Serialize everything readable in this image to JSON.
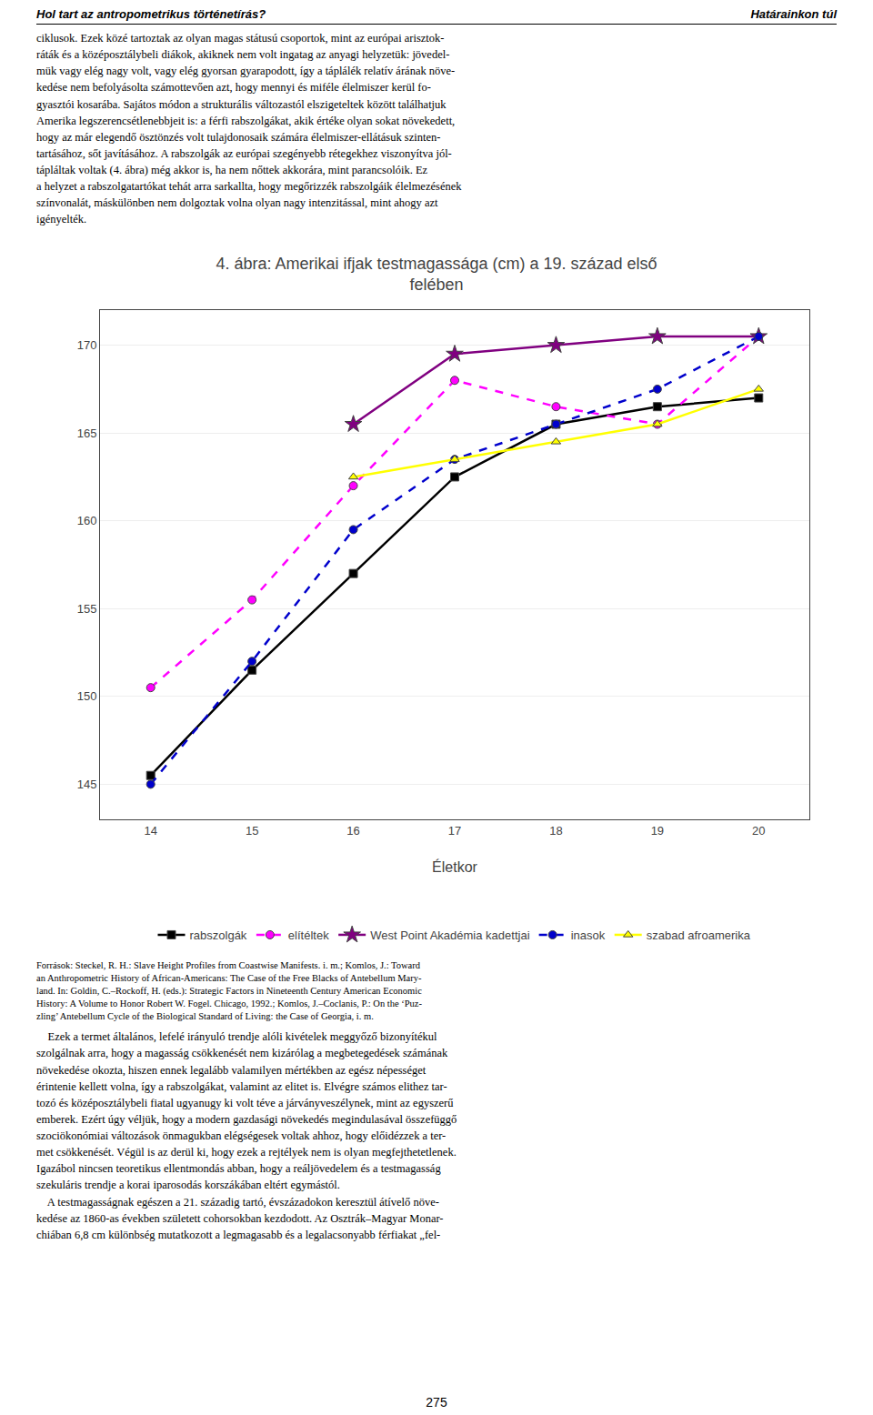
{
  "chart_data": {
    "type": "line",
    "title": "4. ábra: Amerikai ifjak testmagassága (cm) a 19. század első\nfelében",
    "xlabel": "Életkor",
    "x": [
      14,
      15,
      16,
      17,
      18,
      19,
      20
    ],
    "xlim": [
      13.5,
      20.5
    ],
    "xticks": [
      14,
      15,
      16,
      17,
      18,
      19,
      20
    ],
    "ylim": [
      143,
      172
    ],
    "yticks": [
      145,
      150,
      155,
      160,
      165,
      170
    ],
    "grid": "y",
    "legend": "bottom",
    "series": [
      {
        "name": "rabszolgák",
        "color": "#000000",
        "marker": "square",
        "line_style": "solid",
        "values": [
          145.5,
          151.5,
          157.0,
          162.5,
          165.5,
          166.5,
          167.0
        ]
      },
      {
        "name": "elítéltek",
        "color": "#FF00FF",
        "marker": "circle",
        "line_style": "dashed",
        "values": [
          150.5,
          155.5,
          162.0,
          168.0,
          166.5,
          165.5,
          170.5
        ]
      },
      {
        "name": "West Point Akadémia kadettjai",
        "color": "#800080",
        "marker": "star",
        "line_style": "solid",
        "values": [
          null,
          null,
          165.5,
          169.5,
          170.0,
          170.5,
          170.5
        ]
      },
      {
        "name": "inasok",
        "color": "#0000CC",
        "marker": "circle",
        "line_style": "dashed",
        "values": [
          145.0,
          152.0,
          159.5,
          163.5,
          165.5,
          167.5,
          170.5
        ]
      },
      {
        "name": "szabad afroamerika",
        "color": "#FFFF00",
        "marker": "triangle-up",
        "line_style": "solid",
        "values": [
          null,
          null,
          162.5,
          163.5,
          164.5,
          165.5,
          167.5
        ]
      }
    ],
    "annotations": [
      "Hol tart az antropometrikus történetírás?",
      "Határainkon túl",
      "ciklusok. Ezek közé tartoztak az olyan magas státusú csoportok, mint az európai arisztok-\nráták és a középosztálybeli diákok, akiknek nem volt ingatag az anyagi helyzetük: jövedel-\nmük vagy elég nagy volt, vagy elég gyorsan gyarapodott, így a táplálék relatív árának növe-\nkedése nem befolyásolta számottevően azt, hogy mennyi és miféle élelmiszer kerül fo-\ngyasztói kosarába. Sajátos módon a strukturális változastól elszigeteltek között találhatjuk\nAmerika legszerencsétlenebbjeit is: a férfi rabszolgákat, akik értéke olyan sokat növekedett,\nhogy az már elegendő ösztönzés volt tulajdonosaik számára élelmiszer-ellátásuk szinten-\ntartásához, sőt javításához. A rabszolgák az európai szegényebb rétegekhez viszonyítva jól-\ntápláltak voltak (4. ábra) még akkor is, ha nem nőttek akkorára, mint parancsolóik. Ez\na helyzet a rabszolgatartókat tehát arra sarkallta, hogy megőrizzék rabszolgáik élelmezésének\nszínvonalát, máskülönben nem dolgoztak volna olyan nagy intenzitással, mint ahogy azt\nigényelték.",
      "Források: Steckel, R. H.: Slave Height Profiles from Coastwise Manifests. i. m.; Komlos, J.: Toward\nan Anthropometric History of African-Americans: The Case of the Free Blacks of Antebellum Mary-\nland. In: Goldin, C.–Rockoff, H. (eds.): Strategic Factors in Nineteenth Century American Economic\nHistory: A Volume to Honor Robert W. Fogel. Chicago, 1992.; Komlos, J.–Coclanis, P.: On the ‘Puz-\nzling’ Antebellum Cycle of the Biological Standard of Living: the Case of Georgia, i. m.",
      "    Ezek a termet általános, lefelé irányuló trendje alóli kivételek meggyőző bizonyítékul\nszolgálnak arra, hogy a magasság csökkenését nem kizárólag a megbetegedések számának\nnövekedése okozta, hiszen ennek legalább valamilyen mértékben az egész népességet\nérintenie kellett volna, így a rabszolgákat, valamint az elitet is. Elvégre számos elithez tar-\ntozó és középosztálybeli fiatal ugyanugy ki volt téve a járványveszélynek, mint az egyszerű\nemberek. Ezért úgy véljük, hogy a modern gazdasági növekedés megindulasával összefüggő\nszociökonómiai változások önmagukban elégségesek voltak ahhoz, hogy előidézzek a ter-\nmet csökkenését. Végül is az derül ki, hogy ezek a rejtélyek nem is olyan megfejthetetlenek.\nIgazábol nincsen teoretikus ellentmondás abban, hogy a reáljövedelem és a testmagasság\nszekuláris trendje a korai iparosodás korszákában eltért egymástól.\n    A testmagasságnak egészen a 21. századig tartó, évszázadokon keresztül átívelő növe-\nkedése az 1860-as években született cohorsokban kezdodott. Az Osztrák–Magyar Monar-\nchiában 6,8 cm különbség mutatkozott a legmagasabb és a legalacsonyabb férfiakat „fel-",
      "275"
    ]
  }
}
